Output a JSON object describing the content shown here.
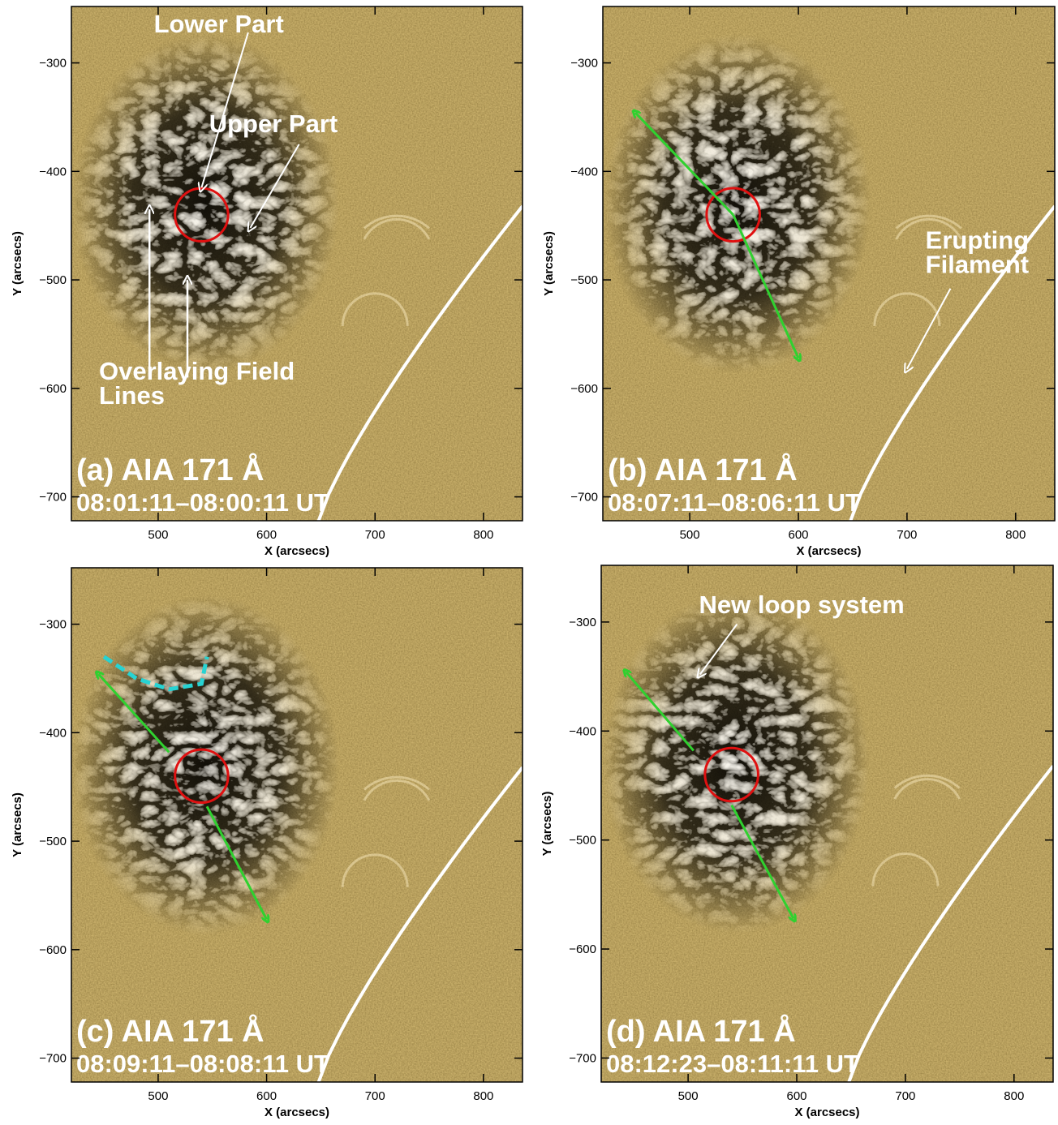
{
  "figure": {
    "x_range": [
      420,
      836
    ],
    "y_range": [
      -722,
      -248
    ],
    "x_ticks": [
      500,
      600,
      700,
      800
    ],
    "y_ticks": [
      -300,
      -400,
      -500,
      -600,
      -700
    ],
    "xlabel": "X (arcsecs)",
    "ylabel": "Y (arcsecs)",
    "colors": {
      "background": "#8a6a2a",
      "limb": "#ffffff",
      "circle": "#e01010",
      "arrow_green": "#2fd12f",
      "dash_cyan": "#27d3d3",
      "annotation": "#ffffff"
    }
  },
  "panels": [
    {
      "id": "a",
      "title": "(a) AIA 171 Å",
      "time": "08:01:11–08:00:11 UT",
      "circle": {
        "x": 540,
        "y": -440,
        "r": 20
      },
      "annotations": [
        {
          "lines": [
            "Lower Part"
          ],
          "x": 496,
          "y": -272
        },
        {
          "lines": [
            "Upper Part"
          ],
          "x": 547,
          "y": -364
        },
        {
          "lines": [
            "Overlaying Field",
            "Lines"
          ],
          "x": 100,
          "y": -592
        }
      ]
    },
    {
      "id": "b",
      "title": "(b) AIA 171 Å",
      "time": "08:07:11–08:06:11 UT",
      "circle": {
        "x": 540,
        "y": -440,
        "r": 20
      },
      "annotations": [
        {
          "lines": [
            "Erupting",
            "Filament"
          ],
          "x": 717,
          "y": -471
        }
      ]
    },
    {
      "id": "c",
      "title": "(c) AIA 171 Å",
      "time": "08:09:11–08:08:11 UT",
      "circle": {
        "x": 540,
        "y": -440,
        "r": 20
      },
      "annotations": []
    },
    {
      "id": "d",
      "title": "(d) AIA 171 Å",
      "time": "08:12:23–08:11:11 UT",
      "circle": {
        "x": 540,
        "y": -440,
        "r": 20
      },
      "annotations": [
        {
          "lines": [
            "New loop system"
          ],
          "x": 510,
          "y": -292
        }
      ]
    }
  ]
}
